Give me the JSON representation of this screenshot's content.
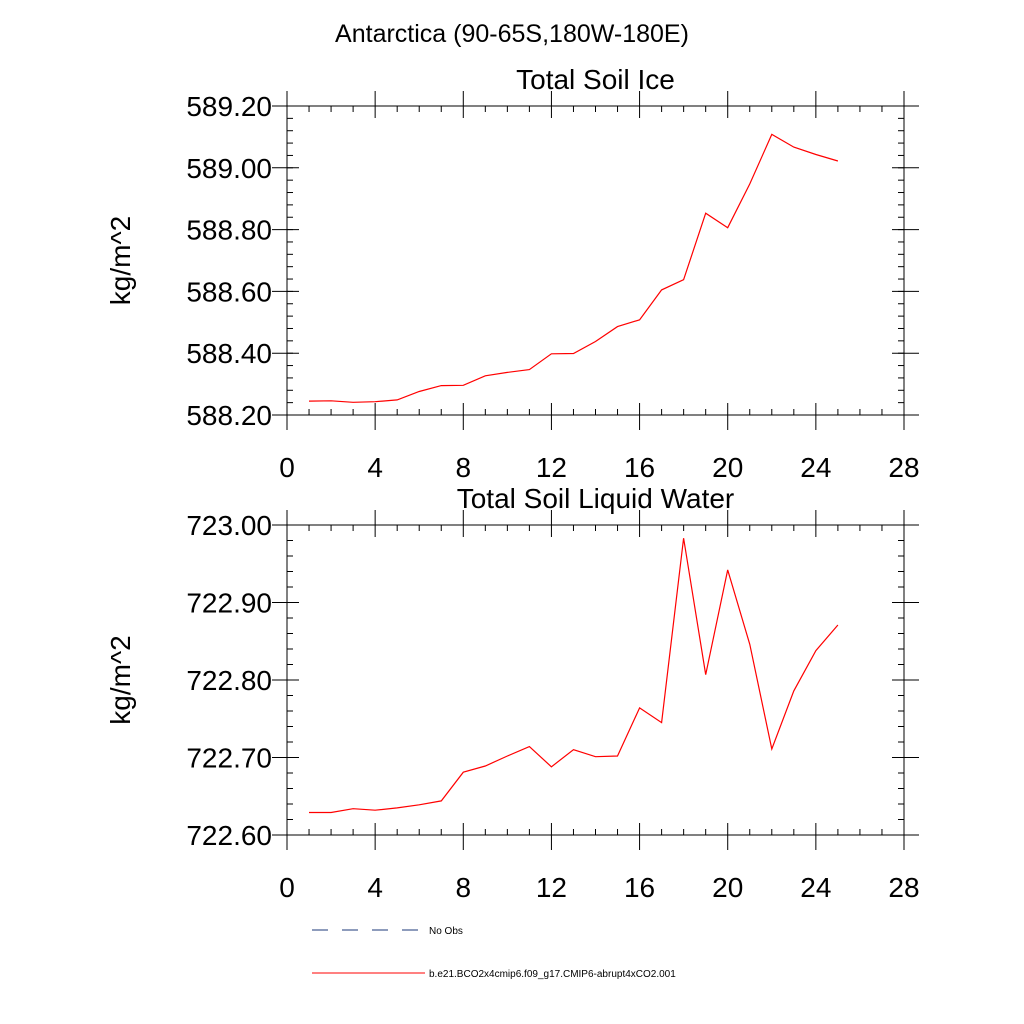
{
  "figure": {
    "region_title": "Antarctica (90-65S,180W-180E)"
  },
  "chart_data": [
    {
      "type": "line",
      "title": "Total Soil Ice",
      "xlabel": "",
      "ylabel": "kg/m^2",
      "xlim": [
        0,
        28
      ],
      "ylim": [
        588.2,
        589.2
      ],
      "x_ticks": [
        0,
        4,
        8,
        12,
        16,
        20,
        24,
        28
      ],
      "x_tick_labels": [
        "0",
        "4",
        "8",
        "12",
        "16",
        "20",
        "24",
        "28"
      ],
      "y_ticks": [
        588.2,
        588.4,
        588.6,
        588.8,
        589.0,
        589.2
      ],
      "y_tick_labels": [
        "588.20",
        "588.40",
        "588.60",
        "588.80",
        "589.00",
        "589.20"
      ],
      "y_minor_step": 0.04,
      "x_minor_step": 1,
      "series": [
        {
          "name": "b.e21.BCO2x4cmip6.f09_g17.CMIP6-abrupt4xCO2.001",
          "color": "#ff0000",
          "x": [
            1,
            2,
            3,
            4,
            5,
            6,
            7,
            8,
            9,
            10,
            11,
            12,
            13,
            14,
            15,
            16,
            17,
            18,
            19,
            20,
            21,
            22,
            23,
            24,
            25
          ],
          "y": [
            588.245,
            588.246,
            588.241,
            588.243,
            588.249,
            588.276,
            588.295,
            588.296,
            588.327,
            588.338,
            588.347,
            588.398,
            588.399,
            588.438,
            588.486,
            588.508,
            588.605,
            588.638,
            588.853,
            588.806,
            588.948,
            589.108,
            589.067,
            589.043,
            589.022
          ]
        }
      ]
    },
    {
      "type": "line",
      "title": "Total Soil Liquid Water",
      "xlabel": "",
      "ylabel": "kg/m^2",
      "xlim": [
        0,
        28
      ],
      "ylim": [
        722.6,
        723.0
      ],
      "x_ticks": [
        0,
        4,
        8,
        12,
        16,
        20,
        24,
        28
      ],
      "x_tick_labels": [
        "0",
        "4",
        "8",
        "12",
        "16",
        "20",
        "24",
        "28"
      ],
      "y_ticks": [
        722.6,
        722.7,
        722.8,
        722.9,
        723.0
      ],
      "y_tick_labels": [
        "722.60",
        "722.70",
        "722.80",
        "722.90",
        "723.00"
      ],
      "y_minor_step": 0.02,
      "x_minor_step": 1,
      "series": [
        {
          "name": "b.e21.BCO2x4cmip6.f09_g17.CMIP6-abrupt4xCO2.001",
          "color": "#ff0000",
          "x": [
            1,
            2,
            3,
            4,
            5,
            6,
            7,
            8,
            9,
            10,
            11,
            12,
            13,
            14,
            15,
            16,
            17,
            18,
            19,
            20,
            21,
            22,
            23,
            24,
            25
          ],
          "y": [
            722.629,
            722.629,
            722.634,
            722.632,
            722.635,
            722.639,
            722.644,
            722.681,
            722.689,
            722.702,
            722.714,
            722.688,
            722.71,
            722.701,
            722.702,
            722.764,
            722.745,
            722.983,
            722.807,
            722.942,
            722.846,
            722.711,
            722.786,
            722.838,
            722.871
          ]
        }
      ]
    }
  ],
  "legend": {
    "placement": "bottom-left",
    "items": [
      {
        "label": "No Obs",
        "color": "#1e3a78",
        "style": "dashed"
      },
      {
        "label": "b.e21.BCO2x4cmip6.f09_g17.CMIP6-abrupt4xCO2.001",
        "color": "#ff0000",
        "style": "solid"
      }
    ]
  }
}
